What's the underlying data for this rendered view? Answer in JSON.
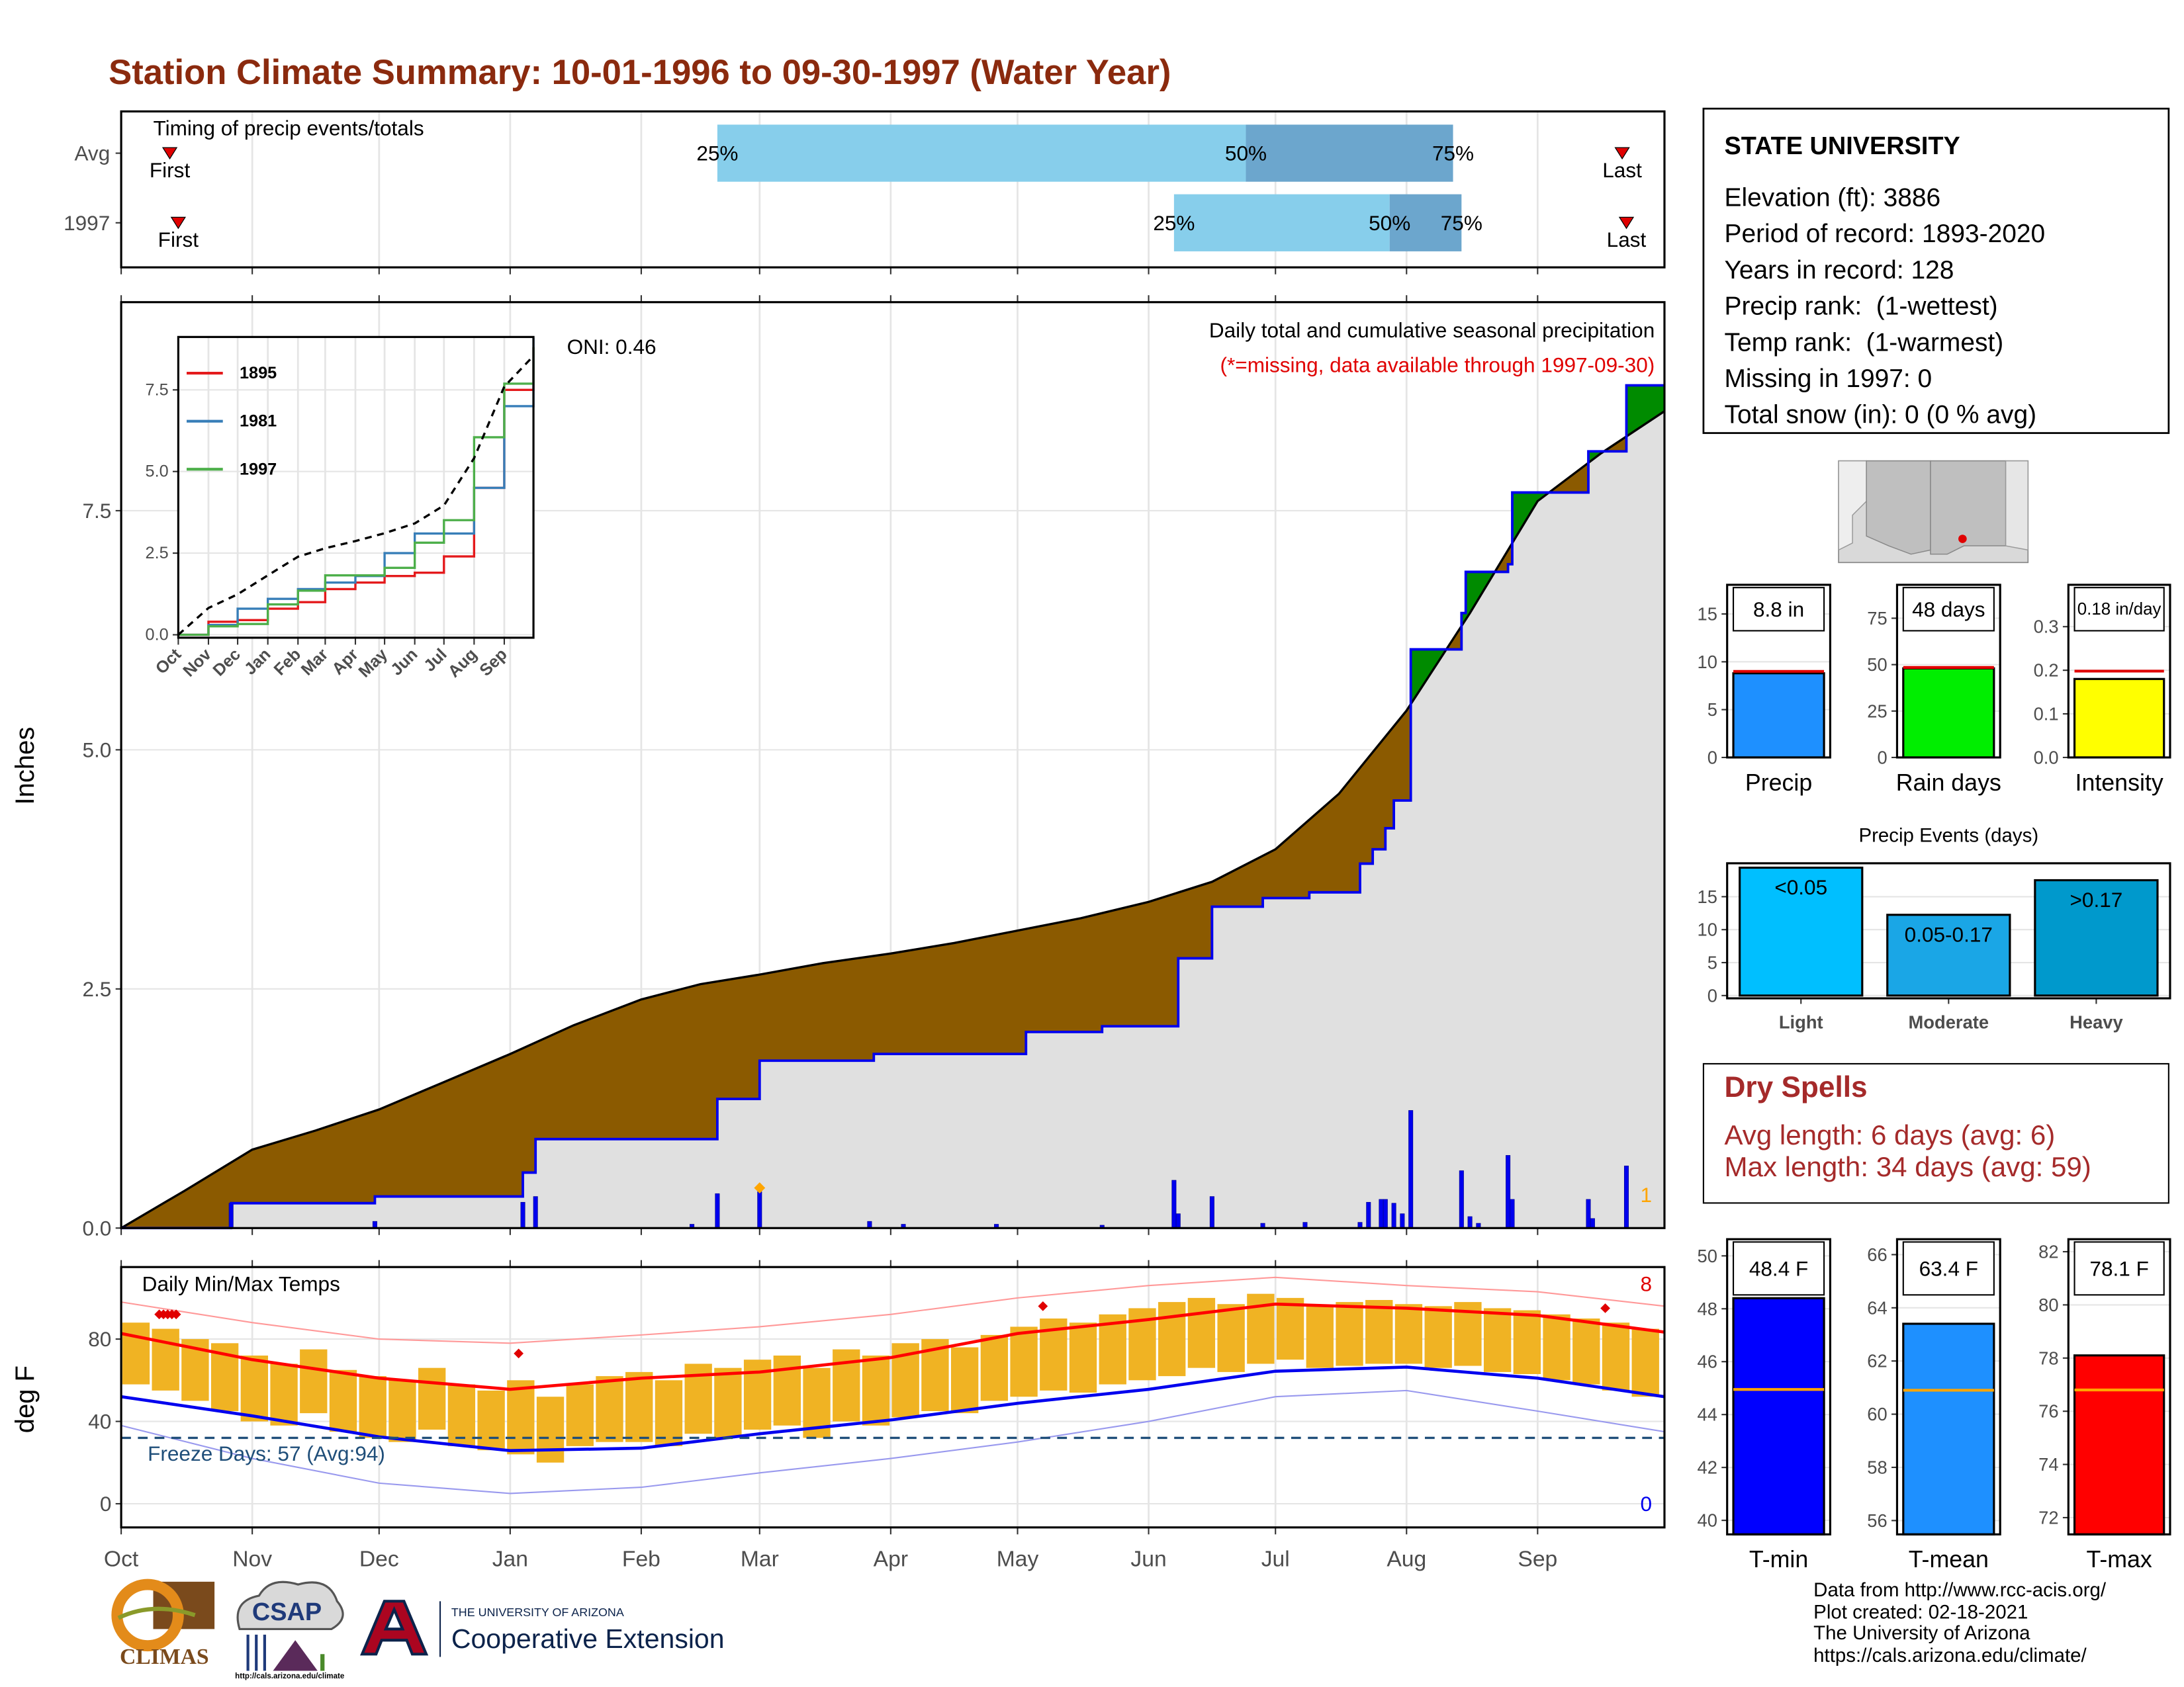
{
  "title": "Station Climate Summary: 10-01-1996 to 09-30-1997 (Water Year)",
  "info": {
    "name": "STATE UNIVERSITY",
    "lines": [
      "Elevation (ft): 3886",
      "Period of record: 1893-2020",
      "Years in record: 128",
      "Precip rank:  (1-wettest)",
      "Temp rank:  (1-warmest)",
      "Missing in 1997: 0",
      "Total snow (in): 0 (0 % avg)"
    ]
  },
  "dry_spells": {
    "title": "Dry Spells",
    "lines": [
      "Avg length: 6 days (avg: 6)",
      "Max length: 34 days (avg: 59)"
    ]
  },
  "footer": [
    "Data from http://www.rcc-acis.org/",
    "Plot created: 02-18-2021",
    "The University of Arizona",
    "https://cals.arizona.edu/climate/"
  ],
  "logos": {
    "climas": "CLIMAS",
    "csap": "CSAP",
    "csap_url": "http://cals.arizona.edu/climate",
    "ua": "THE UNIVERSITY OF ARIZONA",
    "coop": "Cooperative Extension"
  },
  "chart_data": [
    {
      "type": "timing",
      "title": "Timing of precip events/totals",
      "xlim": [
        0,
        365
      ],
      "xticks": [
        0,
        31,
        61,
        92,
        123,
        151,
        182,
        212,
        243,
        273,
        304,
        335
      ],
      "grid": true,
      "labels": {
        "first": "First",
        "last": "Last",
        "q25": "25%",
        "q50": "50%",
        "q75": "75%"
      },
      "colors": {
        "lower": "#87ceeb",
        "upper": "#6ca6cd",
        "marker": "#e00000"
      },
      "rows": [
        {
          "name": "Avg",
          "first": 11.5,
          "q25": 141,
          "q50": 266,
          "q75": 315,
          "last": 355
        },
        {
          "name": "1997",
          "first": 13.5,
          "q25": 249,
          "q50": 300,
          "q75": 317,
          "last": 356
        }
      ]
    },
    {
      "type": "area",
      "subtitle": "Daily total and cumulative seasonal precipitation",
      "note": "(*=missing, data available through 1997-09-30)",
      "oni": "ONI: 0.46",
      "annotation": "1",
      "y_label": "Inches",
      "xlim": [
        0,
        365
      ],
      "ylim": [
        0,
        9.68
      ],
      "xticks": [
        0,
        31,
        61,
        92,
        123,
        151,
        182,
        212,
        243,
        273,
        304,
        335
      ],
      "yticks": [
        {
          "value": 0,
          "label": "0.0"
        },
        2.5,
        {
          "value": 5,
          "label": "5.0"
        },
        7.5
      ],
      "grid": true,
      "fill_below": "#8b5a00",
      "fill_above": "#008b00",
      "fill_base": "#e0e0e0",
      "average": {
        "color": "#000000",
        "x": [
          0,
          15,
          31,
          46,
          61,
          76,
          92,
          107,
          123,
          137,
          151,
          166,
          182,
          197,
          212,
          227,
          243,
          258,
          273,
          288,
          304,
          319,
          335,
          350,
          365
        ],
        "values": [
          0,
          0.39,
          0.82,
          1.02,
          1.24,
          1.52,
          1.82,
          2.12,
          2.39,
          2.55,
          2.65,
          2.77,
          2.87,
          2.98,
          3.11,
          3.24,
          3.41,
          3.62,
          3.96,
          4.54,
          5.41,
          6.43,
          7.6,
          8.1,
          8.54
        ]
      },
      "observed": {
        "color": "#0000ee",
        "x": [
          0,
          26,
          60,
          95,
          98,
          141,
          151,
          178,
          214,
          232,
          250,
          258,
          270,
          281,
          293,
          296,
          299,
          301,
          305,
          317,
          318,
          328,
          329,
          347,
          356,
          365
        ],
        "values": [
          0,
          0.26,
          0.33,
          0.58,
          0.93,
          1.35,
          1.75,
          1.82,
          2.05,
          2.11,
          2.82,
          3.36,
          3.45,
          3.51,
          3.81,
          3.96,
          4.18,
          4.47,
          6.05,
          6.43,
          6.86,
          6.94,
          7.69,
          8.12,
          8.81,
          8.81
        ]
      },
      "daily": {
        "color": "#0000ee",
        "x": [
          26,
          60,
          95,
          98,
          135,
          141,
          151,
          177,
          185,
          207,
          232,
          249,
          250,
          258,
          270,
          280,
          293,
          295,
          298,
          299,
          301,
          303,
          305,
          317,
          319,
          321,
          328,
          329,
          347,
          348,
          356
        ],
        "values": [
          0.26,
          0.07,
          0.27,
          0.33,
          0.04,
          0.36,
          0.38,
          0.07,
          0.04,
          0.04,
          0.03,
          0.5,
          0.15,
          0.33,
          0.05,
          0.06,
          0.06,
          0.27,
          0.3,
          0.3,
          0.26,
          0.15,
          1.23,
          0.6,
          0.12,
          0.05,
          0.76,
          0.3,
          0.3,
          0.1,
          0.65
        ]
      },
      "markers": {
        "color": "#ffa500",
        "x": [
          151
        ],
        "values": [
          0.42
        ]
      },
      "annotation_color": "#ffa500",
      "note_color": "#e00000"
    },
    {
      "type": "line",
      "xlim": [
        0,
        365
      ],
      "ylim": [
        -0.09,
        9.12
      ],
      "legend": "top-left",
      "grid": true,
      "xticks": [
        {
          "value": 0,
          "label": "Oct"
        },
        {
          "value": 31,
          "label": "Nov"
        },
        {
          "value": 61,
          "label": "Dec"
        },
        {
          "value": 92,
          "label": "Jan"
        },
        {
          "value": 123,
          "label": "Feb"
        },
        {
          "value": 151,
          "label": "Mar"
        },
        {
          "value": 182,
          "label": "Apr"
        },
        {
          "value": 212,
          "label": "May"
        },
        {
          "value": 243,
          "label": "Jun"
        },
        {
          "value": 273,
          "label": "Jul"
        },
        {
          "value": 304,
          "label": "Aug"
        },
        {
          "value": 335,
          "label": "Sep"
        }
      ],
      "yticks": [
        {
          "value": 0,
          "label": "0.0"
        },
        2.5,
        {
          "value": 5,
          "label": "5.0"
        },
        7.5
      ],
      "x": [
        0,
        31,
        61,
        92,
        123,
        151,
        182,
        212,
        243,
        273,
        304,
        335,
        365
      ],
      "series": [
        {
          "name": "1895",
          "color": "#e41a1c",
          "values": [
            0,
            0.4,
            0.45,
            0.8,
            1.0,
            1.4,
            1.6,
            1.8,
            1.9,
            2.4,
            4.5,
            7.5,
            8.8
          ]
        },
        {
          "name": "1981",
          "color": "#377eb8",
          "values": [
            0,
            0.3,
            0.8,
            1.1,
            1.4,
            1.6,
            1.8,
            2.5,
            3.1,
            3.1,
            4.5,
            7.0,
            9.1
          ]
        },
        {
          "name": "1997",
          "color": "#4daf4a",
          "values": [
            0,
            0.26,
            0.33,
            0.93,
            1.35,
            1.82,
            1.82,
            2.05,
            2.82,
            3.51,
            6.05,
            7.69,
            8.81
          ]
        }
      ],
      "average": {
        "color": "#000000",
        "values": [
          0,
          0.82,
          1.24,
          1.82,
          2.39,
          2.65,
          2.87,
          3.11,
          3.41,
          3.96,
          5.41,
          7.6,
          8.54
        ]
      }
    },
    {
      "type": "range_bar",
      "title": "Daily Min/Max Temps",
      "y_label": "deg F",
      "freeze_label": "Freeze Days: 57 (Avg:94)",
      "freeze_threshold": 32,
      "record_high_count": 8,
      "record_low_count": 0,
      "xlim": [
        0,
        365
      ],
      "ylim": [
        -11.5,
        115
      ],
      "yticks": [
        0,
        40,
        80
      ],
      "grid": true,
      "xticks": [
        {
          "value": 0,
          "label": "Oct"
        },
        {
          "value": 31,
          "label": "Nov"
        },
        {
          "value": 61,
          "label": "Dec"
        },
        {
          "value": 92,
          "label": "Jan"
        },
        {
          "value": 123,
          "label": "Feb"
        },
        {
          "value": 151,
          "label": "Mar"
        },
        {
          "value": 182,
          "label": "Apr"
        },
        {
          "value": 212,
          "label": "May"
        },
        {
          "value": 243,
          "label": "Jun"
        },
        {
          "value": 273,
          "label": "Jul"
        },
        {
          "value": 304,
          "label": "Aug"
        },
        {
          "value": 335,
          "label": "Sep"
        }
      ],
      "bar_color": "#f0b323",
      "x": [
        0,
        7,
        14,
        21,
        28,
        35,
        42,
        49,
        56,
        63,
        70,
        77,
        84,
        91,
        98,
        105,
        112,
        119,
        126,
        133,
        140,
        147,
        154,
        161,
        168,
        175,
        182,
        189,
        196,
        203,
        210,
        217,
        224,
        231,
        238,
        245,
        252,
        259,
        266,
        273,
        280,
        287,
        294,
        301,
        308,
        315,
        322,
        329,
        336,
        343,
        350,
        357
      ],
      "tmax": [
        88,
        85,
        80,
        78,
        72,
        68,
        75,
        65,
        62,
        60,
        66,
        58,
        55,
        60,
        52,
        58,
        62,
        64,
        60,
        68,
        66,
        70,
        72,
        66,
        75,
        72,
        78,
        80,
        76,
        82,
        86,
        90,
        88,
        92,
        95,
        98,
        100,
        97,
        102,
        100,
        96,
        98,
        99,
        97,
        96,
        98,
        95,
        94,
        92,
        90,
        88,
        85
      ],
      "tmin": [
        58,
        55,
        50,
        45,
        40,
        38,
        44,
        35,
        32,
        30,
        36,
        28,
        26,
        24,
        20,
        28,
        30,
        30,
        28,
        34,
        32,
        36,
        38,
        32,
        40,
        38,
        42,
        45,
        44,
        50,
        52,
        55,
        54,
        58,
        60,
        62,
        66,
        64,
        68,
        70,
        66,
        67,
        68,
        68,
        66,
        67,
        64,
        63,
        60,
        58,
        55,
        52
      ],
      "line_x": [
        0,
        31,
        61,
        92,
        123,
        151,
        182,
        212,
        243,
        273,
        304,
        335,
        365
      ],
      "lines": [
        {
          "color": "#ff9999",
          "width": 1,
          "values": [
            98,
            88,
            80,
            78,
            82,
            86,
            92,
            100,
            106,
            110,
            106,
            103,
            96
          ]
        },
        {
          "color": "#9999ee",
          "width": 1,
          "values": [
            38,
            22,
            10,
            5,
            8,
            15,
            22,
            30,
            40,
            52,
            55,
            45,
            35
          ]
        },
        {
          "color": "#ff0000",
          "width": 2.2,
          "values": [
            82.7,
            70,
            61,
            55.6,
            61,
            64,
            71,
            82.7,
            89.5,
            97,
            95,
            91.5,
            83.4
          ]
        },
        {
          "color": "#0000ee",
          "width": 2.2,
          "values": [
            52,
            42.7,
            32.5,
            25.8,
            27,
            34,
            40.7,
            48.8,
            55.6,
            64.4,
            66.4,
            61,
            52
          ]
        }
      ],
      "record_highs": {
        "color": "#e00000",
        "x": [
          9,
          10,
          11,
          12,
          13,
          94,
          218,
          351
        ],
        "values": [
          92,
          92,
          92,
          92,
          92,
          73,
          96,
          95
        ]
      },
      "freeze_color": "#1f4e79",
      "high_color": "#e00000",
      "low_color": "#0000ee"
    },
    {
      "type": "bar",
      "categories": [
        "Precip"
      ],
      "values": [
        8.8
      ],
      "value_labels": [
        "8.8 in"
      ],
      "average": 9.0,
      "average_color": "#e00000",
      "color": "#1e90ff",
      "ylim": [
        0,
        18.05
      ],
      "yticks": [
        0,
        5,
        10,
        15
      ],
      "grid": true
    },
    {
      "type": "bar",
      "categories": [
        "Rain days"
      ],
      "values": [
        48
      ],
      "value_labels": [
        "48 days"
      ],
      "average": 48.5,
      "average_color": "#e00000",
      "color": "#00ee00",
      "ylim": [
        0,
        93
      ],
      "yticks": [
        0,
        25,
        50,
        75
      ],
      "grid": true
    },
    {
      "type": "bar",
      "categories": [
        "Intensity"
      ],
      "values": [
        0.18
      ],
      "value_labels": [
        "0.18 in/day"
      ],
      "average": 0.198,
      "average_color": "#e00000",
      "color": "#ffff00",
      "ylim": [
        0,
        0.396
      ],
      "yticks": [
        {
          "value": 0,
          "label": "0.0"
        },
        0.1,
        0.2,
        0.3
      ],
      "grid": true
    },
    {
      "type": "bar",
      "title": "Precip Events (days)",
      "categories": [
        "Light",
        "Moderate",
        "Heavy"
      ],
      "values": [
        19.4,
        12.25,
        17.5
      ],
      "bar_labels": [
        "<0.05",
        "0.05-0.17",
        ">0.17"
      ],
      "colors": [
        "#00bfff",
        "#1aa6e6",
        "#0099cc"
      ],
      "ylim": [
        -0.42,
        20.07
      ],
      "yticks": [
        0,
        5,
        10,
        15
      ],
      "grid": true
    },
    {
      "type": "bar",
      "categories": [
        "T-min"
      ],
      "values": [
        48.4
      ],
      "value_labels": [
        "48.4 F"
      ],
      "average": 44.95,
      "average_color": "#ffa500",
      "color": "#0000ff",
      "ylim": [
        39.47,
        50.63
      ],
      "yticks": [
        40,
        42,
        44,
        46,
        48,
        50
      ],
      "grid": true
    },
    {
      "type": "bar",
      "categories": [
        "T-mean"
      ],
      "values": [
        63.4
      ],
      "value_labels": [
        "63.4 F"
      ],
      "average": 60.9,
      "average_color": "#ffa500",
      "color": "#1e90ff",
      "ylim": [
        55.48,
        66.58
      ],
      "yticks": [
        56,
        58,
        60,
        62,
        64,
        66
      ],
      "grid": true
    },
    {
      "type": "bar",
      "categories": [
        "T-max"
      ],
      "values": [
        78.1
      ],
      "value_labels": [
        "78.1 F"
      ],
      "average": 76.8,
      "average_color": "#ffa500",
      "color": "#ff0000",
      "ylim": [
        71.37,
        82.47
      ],
      "yticks": [
        72,
        74,
        76,
        78,
        80,
        82
      ],
      "grid": true
    }
  ]
}
